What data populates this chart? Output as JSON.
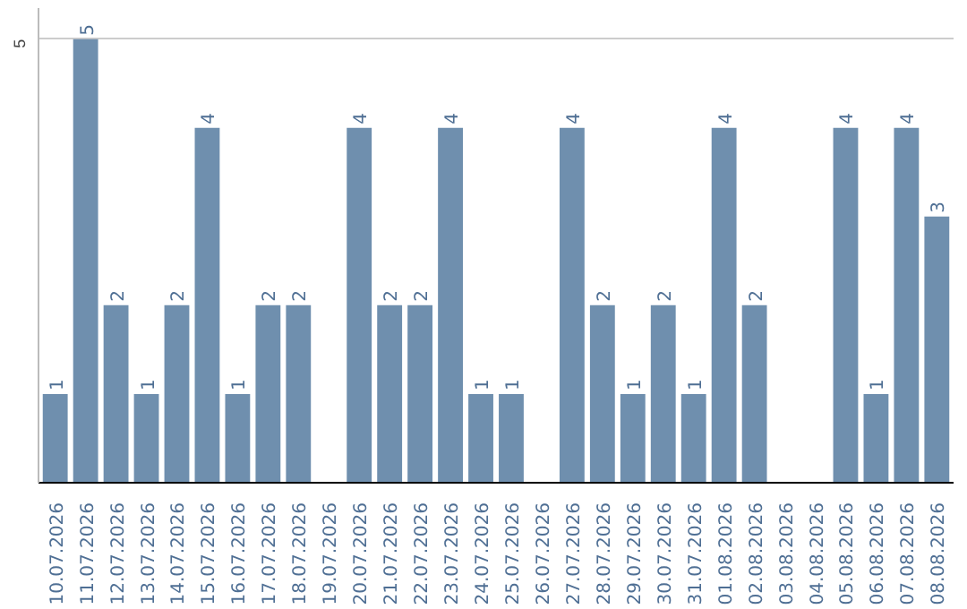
{
  "chart_data": {
    "type": "bar",
    "categories": [
      "10.07.2026",
      "11.07.2026",
      "12.07.2026",
      "13.07.2026",
      "14.07.2026",
      "15.07.2026",
      "16.07.2026",
      "17.07.2026",
      "18.07.2026",
      "19.07.2026",
      "20.07.2026",
      "21.07.2026",
      "22.07.2026",
      "23.07.2026",
      "24.07.2026",
      "25.07.2026",
      "26.07.2026",
      "27.07.2026",
      "28.07.2026",
      "29.07.2026",
      "30.07.2026",
      "31.07.2026",
      "01.08.2026",
      "02.08.2026",
      "03.08.2026",
      "04.08.2026",
      "05.08.2026",
      "06.08.2026",
      "07.08.2026",
      "08.08.2026"
    ],
    "values": [
      1,
      5,
      2,
      1,
      2,
      4,
      1,
      2,
      2,
      0,
      4,
      2,
      2,
      4,
      1,
      1,
      0,
      4,
      2,
      1,
      2,
      1,
      4,
      2,
      0,
      0,
      4,
      1,
      4,
      3
    ],
    "value_labels": [
      "1",
      "5",
      "2",
      "1",
      "2",
      "4",
      "1",
      "2",
      "2",
      null,
      "4",
      "2",
      "2",
      "4",
      "1",
      "1",
      null,
      "4",
      "2",
      "1",
      "2",
      "1",
      "4",
      "2",
      null,
      null,
      "4",
      "1",
      "4",
      "3"
    ],
    "color": "#6f8fae",
    "ylim": [
      0,
      5.35
    ],
    "yticks": [
      5
    ],
    "grid": "y"
  }
}
